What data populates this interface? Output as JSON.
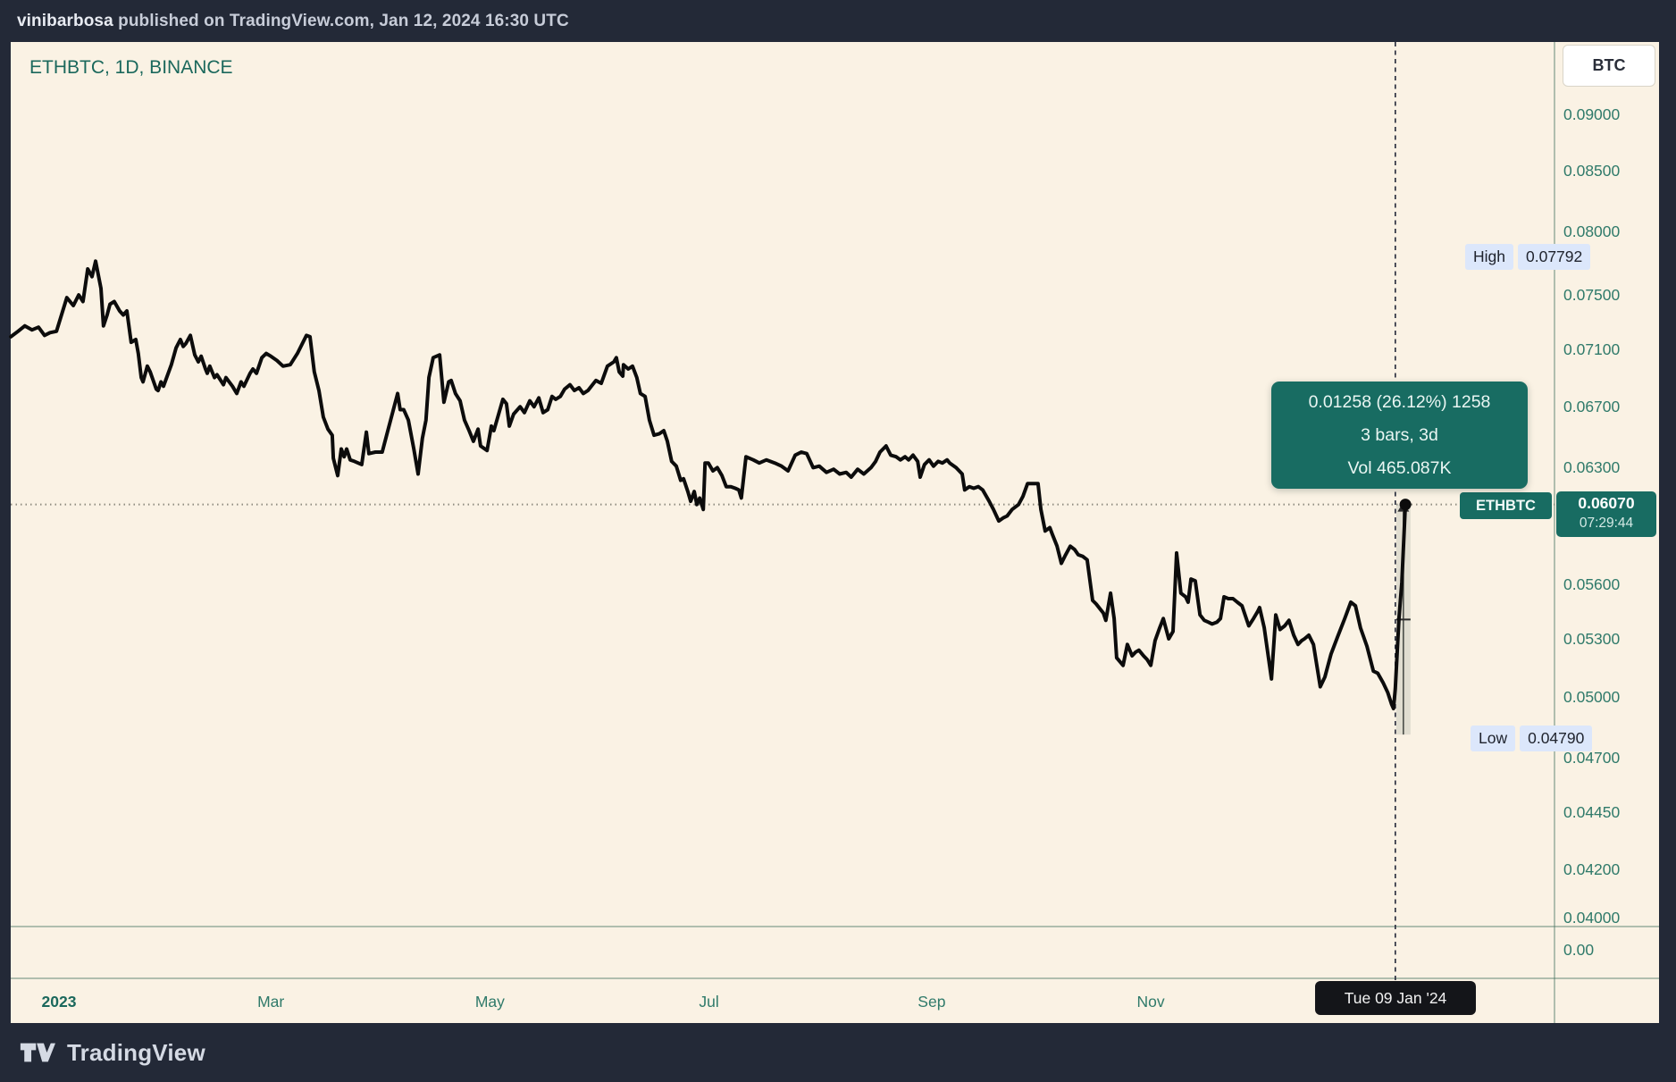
{
  "header": {
    "author": "vinibarbosa",
    "rest": " published on TradingView.com, Jan 12, 2024 16:30 UTC"
  },
  "chart": {
    "title": "ETHBTC, 1D, BINANCE",
    "unit_button": "BTC"
  },
  "tooltip": {
    "lines": [
      "0.01258 (26.12%) 1258",
      "3 bars, 3d",
      "Vol 465.087K"
    ]
  },
  "scales": {
    "price_ticks": [
      "0.09000",
      "0.08500",
      "0.08000",
      "0.07500",
      "0.07100",
      "0.06700",
      "0.06300",
      "0.05600",
      "0.05300",
      "0.05000",
      "0.04700",
      "0.04450",
      "0.04200",
      "0.04000"
    ],
    "volume_zero": "0.00",
    "high": {
      "label": "High",
      "value": "0.07792",
      "price": 0.07792
    },
    "low": {
      "label": "Low",
      "value": "0.04790",
      "price": 0.0479
    },
    "last": {
      "symbol": "ETHBTC",
      "price": "0.06070",
      "countdown": "07:29:44",
      "value": 0.0607
    }
  },
  "time": {
    "labels": [
      {
        "label": "2023",
        "day": 0,
        "bold": true
      },
      {
        "label": "Mar",
        "day": 59
      },
      {
        "label": "May",
        "day": 120
      },
      {
        "label": "Jul",
        "day": 181
      },
      {
        "label": "Sep",
        "day": 243
      },
      {
        "label": "Nov",
        "day": 304
      }
    ],
    "crosshair_date": "Tue 09 Jan '24",
    "crosshair_day": 372.1
  },
  "footer": {
    "brand": "TradingView"
  },
  "colors": {
    "accent_teal": "#186c62",
    "chip_blue": "#dce7fb",
    "axis_text": "#2f7a6a",
    "line_black": "#0c0c0c",
    "panel_beige": "#faf2e4",
    "frame_navy": "#232937",
    "separator": "#43705f",
    "dotted_price_line": "#8f8c80",
    "crosshair": "#23283a"
  },
  "chart_data": {
    "type": "line",
    "title": "ETHBTC, 1D, BINANCE",
    "symbol": "ETHBTC",
    "timeframe": "1D",
    "exchange": "BINANCE",
    "quote_unit": "BTC",
    "scale": "log",
    "x_axis": "days since 2023-01-01 (negative = Dec 2022)",
    "ylim": [
      0.0395,
      0.0915
    ],
    "high": 0.07792,
    "low": 0.0479,
    "last": 0.0607,
    "measure_change": 0.01258,
    "measure_change_pct": 26.12,
    "measure_bars": 3,
    "measure_volume": "465.087K",
    "legend_position": "top-left",
    "grid": false,
    "points": [
      [
        -13.4,
        0.0719
      ],
      [
        -11.4,
        0.0723
      ],
      [
        -9.5,
        0.0727
      ],
      [
        -7.5,
        0.0724
      ],
      [
        -5.7,
        0.0726
      ],
      [
        -4,
        0.072
      ],
      [
        -2.5,
        0.0722
      ],
      [
        -0.7,
        0.0723
      ],
      [
        2.2,
        0.0748
      ],
      [
        4,
        0.0742
      ],
      [
        5.5,
        0.075
      ],
      [
        6.7,
        0.0745
      ],
      [
        8,
        0.077
      ],
      [
        9.2,
        0.0764
      ],
      [
        10.2,
        0.0776
      ],
      [
        11.7,
        0.0755
      ],
      [
        12.4,
        0.0727
      ],
      [
        13.4,
        0.0735
      ],
      [
        14.2,
        0.0743
      ],
      [
        15.4,
        0.0745
      ],
      [
        16.9,
        0.0738
      ],
      [
        17.9,
        0.0735
      ],
      [
        18.9,
        0.0738
      ],
      [
        20.1,
        0.0715
      ],
      [
        21.4,
        0.0717
      ],
      [
        22.1,
        0.0707
      ],
      [
        22.9,
        0.069
      ],
      [
        23.4,
        0.0687
      ],
      [
        24.6,
        0.0698
      ],
      [
        25.4,
        0.0694
      ],
      [
        27.1,
        0.0682
      ],
      [
        27.6,
        0.0681
      ],
      [
        28.4,
        0.0687
      ],
      [
        29.1,
        0.0684
      ],
      [
        31.3,
        0.0699
      ],
      [
        32.6,
        0.0711
      ],
      [
        33.8,
        0.0717
      ],
      [
        34.6,
        0.0712
      ],
      [
        35.3,
        0.0714
      ],
      [
        36.6,
        0.072
      ],
      [
        37.8,
        0.0706
      ],
      [
        38.8,
        0.0701
      ],
      [
        39.6,
        0.0705
      ],
      [
        40.8,
        0.0696
      ],
      [
        41.3,
        0.0693
      ],
      [
        42,
        0.0698
      ],
      [
        43.3,
        0.069
      ],
      [
        44,
        0.0692
      ],
      [
        45.3,
        0.0687
      ],
      [
        45.8,
        0.0685
      ],
      [
        46.5,
        0.069
      ],
      [
        48.3,
        0.0684
      ],
      [
        49.5,
        0.0679
      ],
      [
        50.7,
        0.0687
      ],
      [
        51.5,
        0.0684
      ],
      [
        53.2,
        0.0693
      ],
      [
        54,
        0.0696
      ],
      [
        55,
        0.0693
      ],
      [
        56.5,
        0.0704
      ],
      [
        57.7,
        0.0707
      ],
      [
        59,
        0.0705
      ],
      [
        60.7,
        0.0702
      ],
      [
        62.4,
        0.0698
      ],
      [
        64.4,
        0.0699
      ],
      [
        66.4,
        0.0707
      ],
      [
        68.9,
        0.072
      ],
      [
        69.9,
        0.0719
      ],
      [
        71.1,
        0.0694
      ],
      [
        72.4,
        0.0681
      ],
      [
        73.6,
        0.0663
      ],
      [
        74.9,
        0.0655
      ],
      [
        76.1,
        0.0651
      ],
      [
        76.4,
        0.0636
      ],
      [
        77.6,
        0.0625
      ],
      [
        78.6,
        0.0642
      ],
      [
        79.4,
        0.0637
      ],
      [
        80.1,
        0.0642
      ],
      [
        81.1,
        0.0635
      ],
      [
        82.3,
        0.0634
      ],
      [
        84.3,
        0.0632
      ],
      [
        85.6,
        0.0653
      ],
      [
        86.3,
        0.0639
      ],
      [
        88.1,
        0.064
      ],
      [
        90,
        0.064
      ],
      [
        91.8,
        0.0656
      ],
      [
        94.3,
        0.0679
      ],
      [
        95,
        0.0668
      ],
      [
        96,
        0.0668
      ],
      [
        97.3,
        0.0661
      ],
      [
        98.8,
        0.0642
      ],
      [
        100,
        0.0626
      ],
      [
        101.2,
        0.0649
      ],
      [
        102.2,
        0.0661
      ],
      [
        103,
        0.069
      ],
      [
        104.2,
        0.0704
      ],
      [
        106,
        0.0706
      ],
      [
        107.2,
        0.0673
      ],
      [
        108.5,
        0.0687
      ],
      [
        109.2,
        0.0688
      ],
      [
        110.4,
        0.0679
      ],
      [
        111.7,
        0.0674
      ],
      [
        112.9,
        0.0661
      ],
      [
        114.2,
        0.0654
      ],
      [
        115.4,
        0.0647
      ],
      [
        116.7,
        0.0655
      ],
      [
        117.4,
        0.0644
      ],
      [
        119.2,
        0.0641
      ],
      [
        120.4,
        0.0657
      ],
      [
        121.1,
        0.0654
      ],
      [
        123.6,
        0.0675
      ],
      [
        124.6,
        0.0672
      ],
      [
        125.4,
        0.0657
      ],
      [
        126.6,
        0.0665
      ],
      [
        128.4,
        0.067
      ],
      [
        129.6,
        0.0666
      ],
      [
        131.1,
        0.0674
      ],
      [
        132.3,
        0.067
      ],
      [
        133.6,
        0.0676
      ],
      [
        134.8,
        0.0666
      ],
      [
        136.1,
        0.0668
      ],
      [
        137.3,
        0.0677
      ],
      [
        138.3,
        0.0675
      ],
      [
        139.6,
        0.0677
      ],
      [
        140.8,
        0.0682
      ],
      [
        142.3,
        0.0685
      ],
      [
        143.5,
        0.0681
      ],
      [
        144.8,
        0.0683
      ],
      [
        146,
        0.0679
      ],
      [
        147.3,
        0.0681
      ],
      [
        149.5,
        0.0688
      ],
      [
        151,
        0.0686
      ],
      [
        152.7,
        0.0698
      ],
      [
        154.5,
        0.0701
      ],
      [
        155.2,
        0.0704
      ],
      [
        156,
        0.0694
      ],
      [
        157,
        0.0691
      ],
      [
        157.2,
        0.0699
      ],
      [
        158.5,
        0.0696
      ],
      [
        159.7,
        0.0698
      ],
      [
        160.9,
        0.069
      ],
      [
        161.9,
        0.0679
      ],
      [
        163.2,
        0.0677
      ],
      [
        164.4,
        0.0661
      ],
      [
        165.7,
        0.0651
      ],
      [
        167.2,
        0.0652
      ],
      [
        168.4,
        0.0654
      ],
      [
        169.4,
        0.0647
      ],
      [
        170.6,
        0.0634
      ],
      [
        171.9,
        0.0631
      ],
      [
        173.1,
        0.0622
      ],
      [
        173.9,
        0.0623
      ],
      [
        175.1,
        0.0615
      ],
      [
        175.9,
        0.0609
      ],
      [
        176.9,
        0.0615
      ],
      [
        177.6,
        0.0607
      ],
      [
        178.4,
        0.0611
      ],
      [
        179.4,
        0.0604
      ],
      [
        179.9,
        0.0633
      ],
      [
        180.8,
        0.0633
      ],
      [
        182.1,
        0.0628
      ],
      [
        183.3,
        0.063
      ],
      [
        184.6,
        0.0625
      ],
      [
        185.8,
        0.0618
      ],
      [
        187.1,
        0.0618
      ],
      [
        188.3,
        0.0617
      ],
      [
        189.3,
        0.0616
      ],
      [
        190,
        0.0611
      ],
      [
        191.3,
        0.0637
      ],
      [
        193.3,
        0.0635
      ],
      [
        195,
        0.0633
      ],
      [
        197,
        0.0635
      ],
      [
        199.3,
        0.0633
      ],
      [
        201.2,
        0.0631
      ],
      [
        203,
        0.0628
      ],
      [
        205,
        0.0638
      ],
      [
        206.7,
        0.064
      ],
      [
        208.2,
        0.0639
      ],
      [
        210,
        0.063
      ],
      [
        211.7,
        0.0631
      ],
      [
        213.7,
        0.0627
      ],
      [
        215.7,
        0.0629
      ],
      [
        217.4,
        0.0626
      ],
      [
        219.2,
        0.0627
      ],
      [
        220.6,
        0.0624
      ],
      [
        222.4,
        0.0629
      ],
      [
        224.1,
        0.0626
      ],
      [
        226.1,
        0.063
      ],
      [
        227.4,
        0.0634
      ],
      [
        228.6,
        0.064
      ],
      [
        230.3,
        0.0644
      ],
      [
        231.6,
        0.0638
      ],
      [
        233.1,
        0.0637
      ],
      [
        234.3,
        0.0635
      ],
      [
        235.6,
        0.0637
      ],
      [
        236.6,
        0.0635
      ],
      [
        237.8,
        0.0638
      ],
      [
        239.1,
        0.0634
      ],
      [
        239.8,
        0.0624
      ],
      [
        241,
        0.0632
      ],
      [
        242.3,
        0.0635
      ],
      [
        243.5,
        0.0631
      ],
      [
        244.8,
        0.0634
      ],
      [
        246,
        0.0633
      ],
      [
        247.3,
        0.0635
      ],
      [
        248,
        0.0633
      ],
      [
        249.8,
        0.063
      ],
      [
        251.5,
        0.0626
      ],
      [
        252.2,
        0.0616
      ],
      [
        253.5,
        0.0618
      ],
      [
        254.7,
        0.0617
      ],
      [
        256,
        0.0618
      ],
      [
        257.2,
        0.0616
      ],
      [
        259,
        0.0609
      ],
      [
        260.2,
        0.0604
      ],
      [
        261.7,
        0.0597
      ],
      [
        263,
        0.0599
      ],
      [
        264,
        0.06
      ],
      [
        265.4,
        0.0604
      ],
      [
        267.2,
        0.0607
      ],
      [
        268.4,
        0.0612
      ],
      [
        269.7,
        0.062
      ],
      [
        272.6,
        0.062
      ],
      [
        273.4,
        0.0604
      ],
      [
        274.6,
        0.0591
      ],
      [
        275.9,
        0.0593
      ],
      [
        276.6,
        0.0589
      ],
      [
        277.9,
        0.0582
      ],
      [
        279.1,
        0.0572
      ],
      [
        280.3,
        0.0577
      ],
      [
        281.6,
        0.0582
      ],
      [
        282.8,
        0.058
      ],
      [
        283.8,
        0.0577
      ],
      [
        285.1,
        0.0576
      ],
      [
        286.3,
        0.0574
      ],
      [
        287.8,
        0.0551
      ],
      [
        288.8,
        0.0549
      ],
      [
        290,
        0.0546
      ],
      [
        290.8,
        0.0544
      ],
      [
        291.5,
        0.054
      ],
      [
        292.8,
        0.0555
      ],
      [
        293.8,
        0.0541
      ],
      [
        294.5,
        0.052
      ],
      [
        296.3,
        0.0516
      ],
      [
        297.5,
        0.0527
      ],
      [
        298.8,
        0.0521
      ],
      [
        299.8,
        0.0523
      ],
      [
        300.7,
        0.0524
      ],
      [
        302,
        0.0521
      ],
      [
        303,
        0.0519
      ],
      [
        304,
        0.0516
      ],
      [
        305.2,
        0.0529
      ],
      [
        306.5,
        0.0536
      ],
      [
        307.5,
        0.0541
      ],
      [
        309,
        0.053
      ],
      [
        310.2,
        0.0534
      ],
      [
        311.2,
        0.0578
      ],
      [
        312.4,
        0.0555
      ],
      [
        313.7,
        0.0553
      ],
      [
        314.4,
        0.055
      ],
      [
        315.2,
        0.0563
      ],
      [
        316.4,
        0.0562
      ],
      [
        317.7,
        0.0543
      ],
      [
        318.9,
        0.054
      ],
      [
        320.1,
        0.0539
      ],
      [
        321.1,
        0.0538
      ],
      [
        322.4,
        0.0539
      ],
      [
        323.4,
        0.0541
      ],
      [
        324.4,
        0.0553
      ],
      [
        325.6,
        0.0552
      ],
      [
        326.9,
        0.0552
      ],
      [
        328.1,
        0.055
      ],
      [
        329.4,
        0.0548
      ],
      [
        330.6,
        0.0541
      ],
      [
        331.3,
        0.0537
      ],
      [
        332.6,
        0.0541
      ],
      [
        333.8,
        0.0545
      ],
      [
        334.3,
        0.0547
      ],
      [
        335.6,
        0.0536
      ],
      [
        337.6,
        0.0509
      ],
      [
        338.8,
        0.0543
      ],
      [
        340,
        0.0535
      ],
      [
        341.3,
        0.0537
      ],
      [
        342.5,
        0.054
      ],
      [
        343.8,
        0.0532
      ],
      [
        345,
        0.0527
      ],
      [
        346,
        0.0529
      ],
      [
        346.8,
        0.053
      ],
      [
        348,
        0.0532
      ],
      [
        349.3,
        0.0527
      ],
      [
        351.2,
        0.0505
      ],
      [
        352.5,
        0.051
      ],
      [
        354.2,
        0.0522
      ],
      [
        356,
        0.0531
      ],
      [
        358,
        0.0541
      ],
      [
        359.7,
        0.055
      ],
      [
        361,
        0.0548
      ],
      [
        362.4,
        0.0536
      ],
      [
        364.2,
        0.0526
      ],
      [
        366,
        0.0513
      ],
      [
        367.2,
        0.0512
      ],
      [
        368.7,
        0.0507
      ],
      [
        370,
        0.0502
      ],
      [
        371.1,
        0.0496
      ],
      [
        371.6,
        0.0494
      ],
      [
        372.1,
        0.0504
      ],
      [
        373.1,
        0.0541
      ],
      [
        373.9,
        0.0561
      ],
      [
        374.9,
        0.0607
      ]
    ]
  }
}
